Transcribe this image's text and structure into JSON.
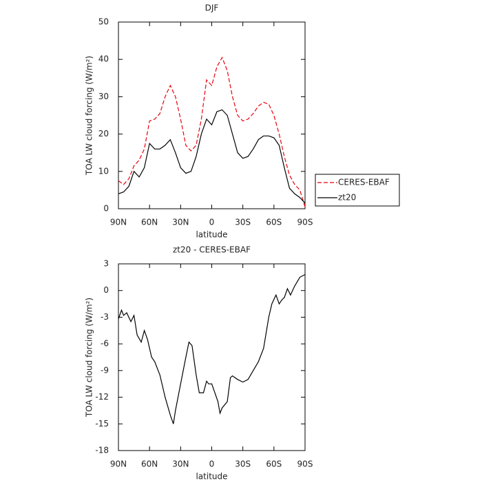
{
  "chart_data": [
    {
      "type": "line",
      "title": "DJF",
      "xlabel": "latitude",
      "ylabel": "TOA LW cloud forcing (W/m²)",
      "x": [
        90,
        85,
        80,
        75,
        70,
        65,
        60,
        55,
        50,
        45,
        40,
        35,
        30,
        25,
        20,
        15,
        10,
        5,
        0,
        -5,
        -10,
        -15,
        -20,
        -25,
        -30,
        -35,
        -40,
        -45,
        -50,
        -55,
        -60,
        -65,
        -70,
        -75,
        -80,
        -85,
        -90
      ],
      "series": [
        {
          "name": "CERES-EBAF",
          "color": "#e8000b",
          "linestyle": "dashed",
          "values": [
            7.5,
            6.5,
            8,
            11.5,
            13,
            16,
            23.5,
            24,
            25.5,
            30,
            33,
            30,
            24,
            17,
            15.5,
            17,
            24,
            34.5,
            33,
            38,
            40.5,
            37,
            30,
            25,
            23.5,
            24,
            25.5,
            27.5,
            28.5,
            28,
            25,
            20,
            14,
            9,
            6.5,
            5,
            0.5
          ]
        },
        {
          "name": "zt20",
          "color": "#000000",
          "linestyle": "solid",
          "values": [
            4,
            4.5,
            6,
            10,
            8.5,
            11,
            17.5,
            16,
            16,
            17,
            18.5,
            15,
            11,
            9.5,
            10,
            14,
            20,
            24,
            22.5,
            26,
            26.5,
            25,
            20,
            15,
            13.5,
            14,
            16,
            18.5,
            19.5,
            19.5,
            19,
            17,
            11,
            5.5,
            4,
            3,
            1.5
          ]
        }
      ],
      "xlim": [
        90,
        -90
      ],
      "xticks": [
        {
          "value": 90,
          "label": "90N"
        },
        {
          "value": 60,
          "label": "60N"
        },
        {
          "value": 30,
          "label": "30N"
        },
        0,
        {
          "value": -30,
          "label": "30S"
        },
        {
          "value": -60,
          "label": "60S"
        },
        {
          "value": -90,
          "label": "90S"
        }
      ],
      "ylim": [
        0,
        50
      ],
      "yticks": [
        0,
        10,
        20,
        30,
        40,
        50
      ],
      "legend": "right"
    },
    {
      "type": "line",
      "title": "zt20 - CERES-EBAF",
      "xlabel": "latitude",
      "ylabel": "TOA LW cloud forcing (W/m²)",
      "x": [
        90,
        87,
        85,
        82,
        78,
        75,
        72,
        68,
        65,
        62,
        58,
        55,
        50,
        45,
        40,
        37,
        35,
        30,
        25,
        22,
        19,
        15,
        12,
        8,
        5,
        3,
        0,
        -3,
        -6,
        -8,
        -10,
        -15,
        -18,
        -20,
        -25,
        -30,
        -35,
        -40,
        -45,
        -50,
        -55,
        -58,
        -62,
        -65,
        -68,
        -70,
        -73,
        -76,
        -80,
        -85,
        -90
      ],
      "series": [
        {
          "color": "#000000",
          "linestyle": "solid",
          "values": [
            -3.2,
            -2.2,
            -2.8,
            -2.5,
            -3.5,
            -2.8,
            -5,
            -5.8,
            -4.5,
            -5.5,
            -7.5,
            -8,
            -9.5,
            -12,
            -14,
            -15,
            -13.5,
            -10.5,
            -7.5,
            -5.8,
            -6.2,
            -9.5,
            -11.5,
            -11.5,
            -10.2,
            -10.5,
            -10.5,
            -11.5,
            -12.5,
            -13.8,
            -13.2,
            -12.5,
            -9.8,
            -9.6,
            -10,
            -10.3,
            -10,
            -9,
            -8,
            -6.5,
            -3,
            -1.5,
            -0.5,
            -1.5,
            -1,
            -0.8,
            0.2,
            -0.5,
            0.5,
            1.5,
            1.8
          ]
        }
      ],
      "xlim": [
        90,
        -90
      ],
      "xticks": [
        {
          "value": 90,
          "label": "90N"
        },
        {
          "value": 60,
          "label": "60N"
        },
        {
          "value": 30,
          "label": "30N"
        },
        0,
        {
          "value": -30,
          "label": "30S"
        },
        {
          "value": -60,
          "label": "60S"
        },
        {
          "value": -90,
          "label": "90S"
        }
      ],
      "ylim": [
        -18,
        3
      ],
      "yticks": [
        -18,
        -15,
        -12,
        -9,
        -6,
        -3,
        0,
        3
      ]
    }
  ]
}
